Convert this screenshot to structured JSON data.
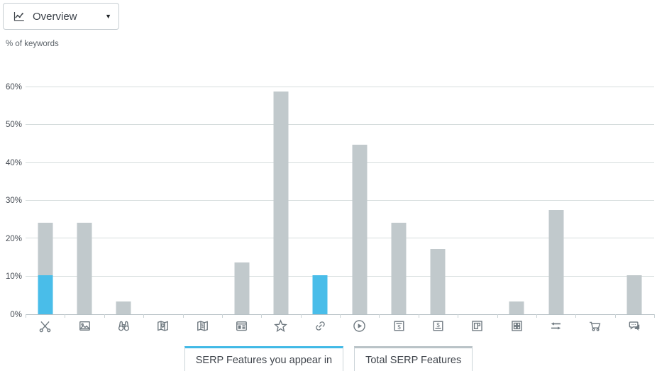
{
  "header": {
    "dropdown": {
      "label": "Overview",
      "caret": "▼"
    },
    "axis_note": "% of keywords"
  },
  "colors": {
    "appear_bar": "#49bde9",
    "total_bar": "#c1c9cc",
    "gridline": "#d6dddd",
    "axis_line": "#b7c1c5",
    "icon": "#6f7980",
    "legend_appear_top": "#41b9e6",
    "legend_total_top": "#b9c3c7"
  },
  "chart_data": {
    "type": "bar",
    "title": "",
    "xlabel": "",
    "ylabel": "% of keywords",
    "ylim": [
      0,
      60
    ],
    "ytick_step": 10,
    "yticks": [
      "0%",
      "10%",
      "20%",
      "30%",
      "40%",
      "50%",
      "60%"
    ],
    "grid": true,
    "legend_position": "bottom",
    "categories": [
      "scissors-icon",
      "image-pack-icon",
      "binoculars-icon",
      "map-pin-icon",
      "map-dollar-pin-icon",
      "newspaper-icon",
      "star-icon",
      "link-icon",
      "video-play-icon",
      "ad-dollar-top-icon",
      "ad-dollar-bottom-icon",
      "panel-layout-icon",
      "grid-window-icon",
      "swap-arrows-icon",
      "shopping-cart-icon",
      "chat-bubbles-icon"
    ],
    "series": [
      {
        "name": "SERP Features you appear in",
        "color": "#49bde9",
        "values": [
          10.4,
          0,
          0,
          0,
          0,
          0,
          0,
          10.4,
          0,
          0,
          0,
          0,
          0,
          0,
          0,
          0
        ]
      },
      {
        "name": "Total SERP Features",
        "color": "#c1c9cc",
        "values": [
          24.2,
          24.2,
          3.4,
          0,
          0,
          13.6,
          58.8,
          10.4,
          44.9,
          24.2,
          17.2,
          0,
          3.4,
          27.6,
          0,
          10.4
        ]
      }
    ]
  },
  "legend": {
    "appear_label": "SERP Features you appear in",
    "total_label": "Total SERP Features"
  }
}
